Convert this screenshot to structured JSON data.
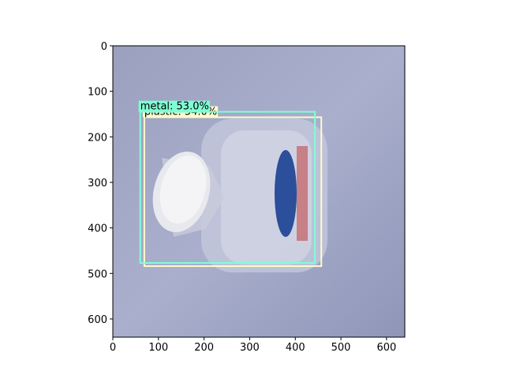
{
  "chart_data": {
    "type": "image",
    "xlim": [
      0,
      640
    ],
    "ylim": [
      640,
      0
    ],
    "xticks": [
      0,
      100,
      200,
      300,
      400,
      500,
      600
    ],
    "yticks": [
      0,
      100,
      200,
      300,
      400,
      500,
      600
    ],
    "boxes": [
      {
        "label": "plastic: 54.0%",
        "color": "#fffacd",
        "x": [
          69,
          457
        ],
        "y": [
          157,
          484
        ]
      },
      {
        "label": "metal: 53.0%",
        "color": "#7fffd4",
        "x": [
          60,
          443
        ],
        "y": [
          145,
          477
        ]
      }
    ]
  }
}
